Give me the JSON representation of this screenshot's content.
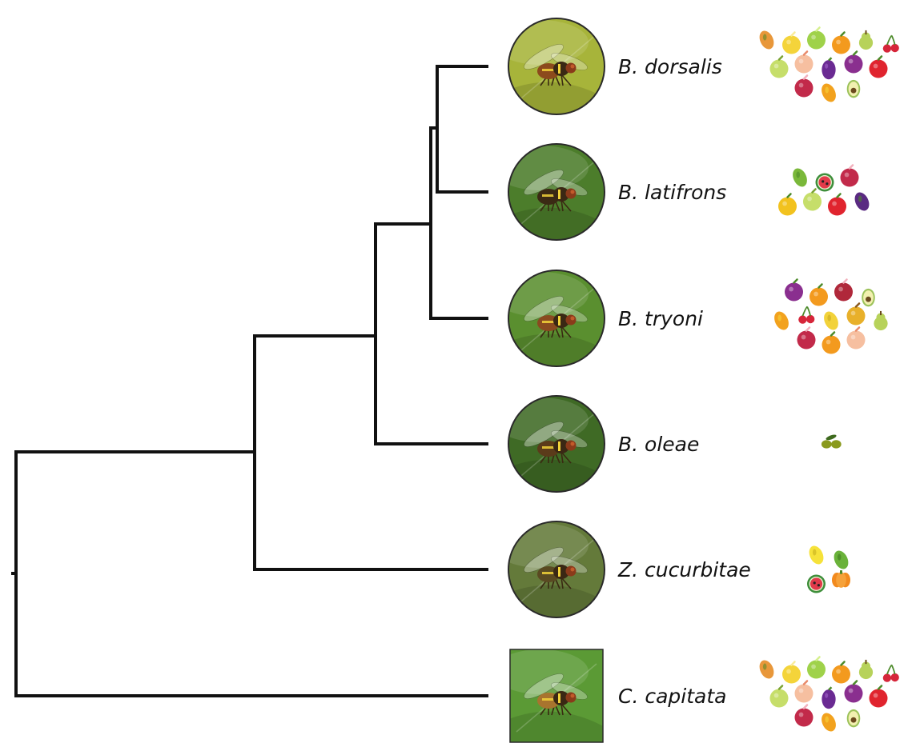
{
  "colors": {
    "branch": "#111111",
    "background": "#ffffff",
    "photo_border": "#2a2a2a"
  },
  "tree": {
    "tips": [
      {
        "id": "dorsalis",
        "label": "B. dorsalis",
        "photo_shape": "circle",
        "photo_bg": "#a7b43a",
        "insect_body": "#8c4a1c",
        "host_icons": [
          "papaya-icon",
          "lemon-icon",
          "lime-icon",
          "orange-icon",
          "pear-icon",
          "cherry-icon",
          "guava-icon",
          "peach-icon",
          "grape-icon",
          "plum-icon",
          "apple-icon",
          "pomegranate-icon",
          "mango-icon",
          "avocado-icon"
        ]
      },
      {
        "id": "latifrons",
        "label": "B. latifrons",
        "photo_shape": "circle",
        "photo_bg": "#4c7d2b",
        "insect_body": "#3b2a14",
        "host_icons": [
          "pepper-icon",
          "watermelon-icon",
          "pomegranate-icon",
          "bell-pepper-icon",
          "guava-icon",
          "tomato-icon",
          "eggplant-icon"
        ]
      },
      {
        "id": "tryoni",
        "label": "B. tryoni",
        "photo_shape": "circle",
        "photo_bg": "#5a8f2f",
        "insect_body": "#8a4a20",
        "host_icons": [
          "plum-icon",
          "orange-icon",
          "fig-icon",
          "avocado-icon",
          "mango-icon",
          "cherry-icon",
          "starfruit-icon",
          "kiwi-icon",
          "pear-icon",
          "pomegranate-icon",
          "orange-icon",
          "peach-icon"
        ]
      },
      {
        "id": "oleae",
        "label": "B. oleae",
        "photo_shape": "circle",
        "photo_bg": "#3f6a25",
        "insect_body": "#5b3b1a",
        "host_icons": [
          "olive-icon"
        ]
      },
      {
        "id": "cucurbitae",
        "label": "Z. cucurbitae",
        "photo_shape": "circle",
        "photo_bg": "#647a3a",
        "insect_body": "#5a4a22",
        "host_icons": [
          "melon-slice-icon",
          "cucumber-icon",
          "watermelon-icon",
          "pumpkin-icon"
        ]
      },
      {
        "id": "capitata",
        "label": "C. capitata",
        "photo_shape": "square",
        "photo_bg": "#5b9a35",
        "insect_body": "#a8742e",
        "host_icons": [
          "papaya-icon",
          "lemon-icon",
          "lime-icon",
          "orange-icon",
          "pear-icon",
          "cherry-icon",
          "guava-icon",
          "peach-icon",
          "grape-icon",
          "plum-icon",
          "apple-icon",
          "pomegranate-icon",
          "mango-icon",
          "avocado-icon"
        ]
      }
    ],
    "topology": "((((((B. dorsalis, B. latifrons), B. tryoni), B. oleae), Z. cucurbitae), C. capitata))"
  }
}
